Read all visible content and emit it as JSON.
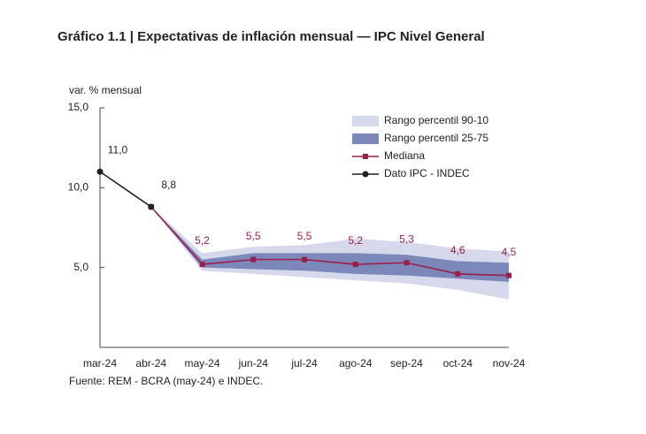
{
  "chart_data": {
    "type": "line",
    "title": "Gráfico 1.1 | Expectativas de inflación mensual — IPC Nivel General",
    "y_label": "var. % mensual",
    "source": "Fuente: REM - BCRA (may-24) e INDEC.",
    "categories": [
      "mar-24",
      "abr-24",
      "may-24",
      "jun-24",
      "jul-24",
      "ago-24",
      "sep-24",
      "oct-24",
      "nov-24"
    ],
    "ylim": [
      0,
      15
    ],
    "yticks": [
      {
        "value": 5,
        "label": "5,0"
      },
      {
        "value": 10,
        "label": "10,0"
      },
      {
        "value": 15,
        "label": "15,0"
      }
    ],
    "bands": [
      {
        "name": "Rango percentil 90-10",
        "color": "#d6d9eb",
        "lower": [
          null,
          8.8,
          4.8,
          4.6,
          4.4,
          4.2,
          4.0,
          3.6,
          3.0
        ],
        "upper": [
          null,
          8.8,
          5.9,
          6.3,
          6.4,
          6.8,
          6.6,
          6.2,
          6.0
        ]
      },
      {
        "name": "Rango percentil 25-75",
        "color": "#7b88b9",
        "lower": [
          null,
          8.8,
          5.0,
          4.9,
          4.8,
          4.6,
          4.5,
          4.3,
          4.1
        ],
        "upper": [
          null,
          8.8,
          5.5,
          5.9,
          5.9,
          5.9,
          5.8,
          5.4,
          5.3
        ]
      }
    ],
    "series": [
      {
        "name": "Mediana",
        "color": "#9b1d4a",
        "values": [
          null,
          8.8,
          5.2,
          5.5,
          5.5,
          5.2,
          5.3,
          4.6,
          4.5
        ],
        "value_labels": [
          null,
          null,
          "5,2",
          "5,5",
          "5,5",
          "5,2",
          "5,3",
          "4,6",
          "4,5"
        ]
      },
      {
        "name": "Dato IPC - INDEC",
        "color": "#222222",
        "values": [
          11.0,
          8.8,
          null,
          null,
          null,
          null,
          null,
          null,
          null
        ],
        "value_labels": [
          "11,0",
          "8,8",
          null,
          null,
          null,
          null,
          null,
          null,
          null
        ]
      }
    ]
  }
}
